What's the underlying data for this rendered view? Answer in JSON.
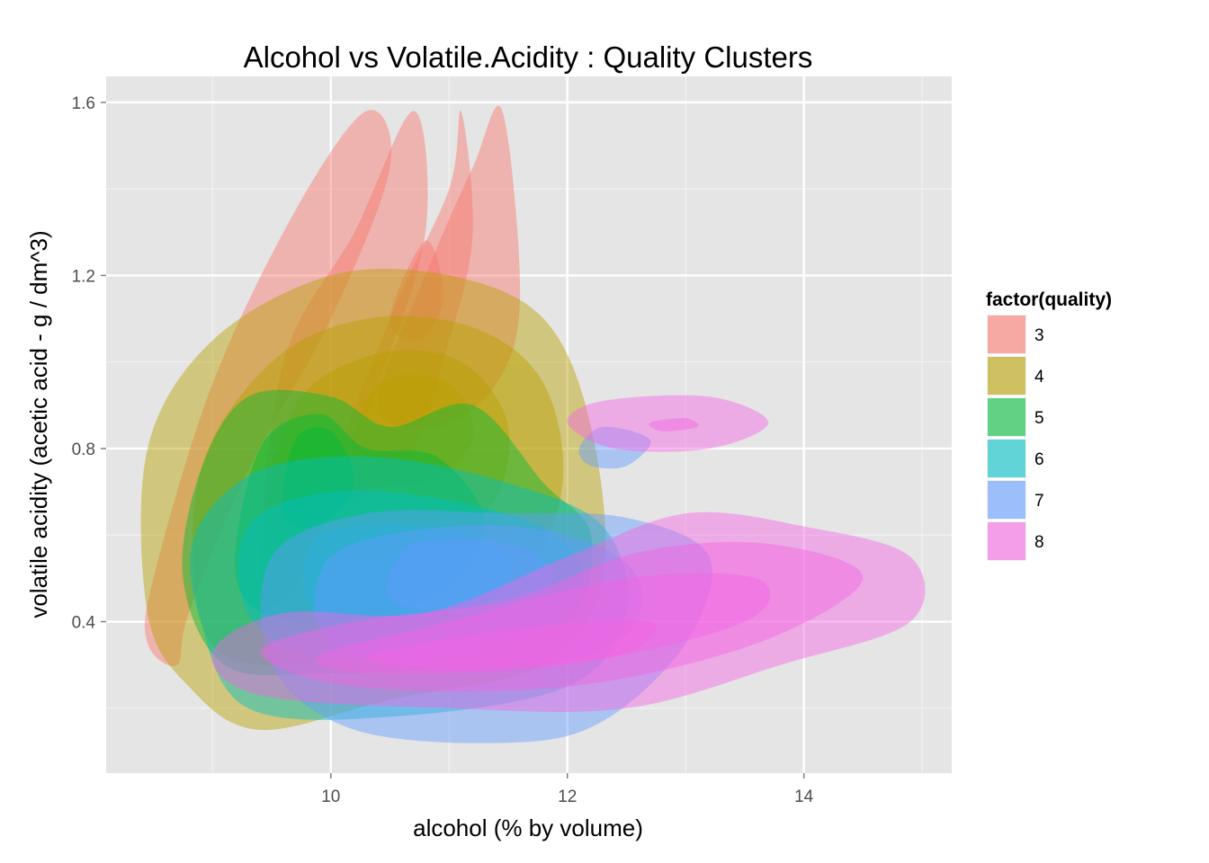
{
  "chart_data": {
    "type": "density2d",
    "title": "Alcohol vs Volatile.Acidity : Quality Clusters",
    "xlabel": "alcohol (% by volume)",
    "ylabel": "volatile acidity (acetic acid - g / dm^3)",
    "xlim": [
      8.1,
      15.25
    ],
    "ylim": [
      0.05,
      1.66
    ],
    "x_ticks": [
      10,
      12,
      14
    ],
    "y_ticks": [
      0.4,
      0.8,
      1.2,
      1.6
    ],
    "x_tick_labels": [
      "10",
      "12",
      "14"
    ],
    "y_tick_labels": [
      "0.4",
      "0.8",
      "1.2",
      "1.6"
    ],
    "grid": true,
    "panel_color": "#e5e5e5",
    "legend": {
      "title": "factor(quality)",
      "position": "right",
      "labels": [
        "3",
        "4",
        "5",
        "6",
        "7",
        "8"
      ],
      "colors": [
        "#F8766D",
        "#B79F00",
        "#00BA38",
        "#00BFC4",
        "#619CFF",
        "#F564E3"
      ]
    },
    "series": [
      {
        "name": "3",
        "color": "#F8766D",
        "layers": [
          [
            [
              8.45,
              0.35
            ],
            [
              8.5,
              0.5
            ],
            [
              9.0,
              0.95
            ],
            [
              9.7,
              1.35
            ],
            [
              10.3,
              1.58
            ],
            [
              10.5,
              1.45
            ],
            [
              10.0,
              1.1
            ],
            [
              9.3,
              0.75
            ],
            [
              8.8,
              0.42
            ],
            [
              8.7,
              0.3
            ]
          ],
          [
            [
              9.4,
              0.5
            ],
            [
              9.6,
              1.0
            ],
            [
              10.2,
              1.3
            ],
            [
              10.7,
              1.58
            ],
            [
              10.8,
              1.3
            ],
            [
              10.4,
              0.95
            ],
            [
              9.9,
              0.6
            ],
            [
              9.6,
              0.45
            ]
          ],
          [
            [
              10.0,
              0.7
            ],
            [
              10.5,
              1.1
            ],
            [
              11.0,
              1.4
            ],
            [
              11.1,
              1.58
            ],
            [
              11.2,
              1.3
            ],
            [
              11.0,
              1.05
            ],
            [
              10.6,
              0.75
            ]
          ],
          [
            [
              10.4,
              0.9
            ],
            [
              10.8,
              1.2
            ],
            [
              11.2,
              1.45
            ],
            [
              11.45,
              1.58
            ],
            [
              11.6,
              1.15
            ],
            [
              11.4,
              0.95
            ],
            [
              10.9,
              0.85
            ]
          ],
          [
            [
              10.5,
              1.1
            ],
            [
              10.8,
              1.28
            ],
            [
              10.95,
              1.15
            ],
            [
              10.75,
              1.05
            ]
          ]
        ]
      },
      {
        "name": "4",
        "color": "#B79F00",
        "layers": [
          [
            [
              8.45,
              0.42
            ],
            [
              8.45,
              0.8
            ],
            [
              9.0,
              1.05
            ],
            [
              10.0,
              1.2
            ],
            [
              11.0,
              1.2
            ],
            [
              11.8,
              1.1
            ],
            [
              12.2,
              0.85
            ],
            [
              12.3,
              0.5
            ],
            [
              11.8,
              0.3
            ],
            [
              10.5,
              0.22
            ],
            [
              9.4,
              0.15
            ],
            [
              8.8,
              0.25
            ]
          ],
          [
            [
              8.9,
              0.4
            ],
            [
              8.9,
              0.75
            ],
            [
              9.5,
              1.0
            ],
            [
              10.3,
              1.1
            ],
            [
              11.2,
              1.08
            ],
            [
              11.8,
              0.95
            ],
            [
              11.95,
              0.7
            ],
            [
              11.5,
              0.45
            ],
            [
              10.5,
              0.35
            ],
            [
              9.4,
              0.3
            ]
          ],
          [
            [
              9.5,
              0.6
            ],
            [
              9.7,
              0.9
            ],
            [
              10.4,
              1.02
            ],
            [
              11.1,
              1.0
            ],
            [
              11.5,
              0.85
            ],
            [
              11.3,
              0.65
            ],
            [
              10.4,
              0.55
            ]
          ],
          [
            [
              10.2,
              0.75
            ],
            [
              10.4,
              0.95
            ],
            [
              11.0,
              0.95
            ],
            [
              11.2,
              0.82
            ],
            [
              10.8,
              0.72
            ]
          ]
        ]
      },
      {
        "name": "5",
        "color": "#00BA38",
        "layers": [
          [
            [
              8.75,
              0.5
            ],
            [
              8.9,
              0.75
            ],
            [
              9.3,
              0.92
            ],
            [
              10.0,
              0.92
            ],
            [
              10.5,
              0.85
            ],
            [
              11.2,
              0.9
            ],
            [
              11.8,
              0.72
            ],
            [
              12.2,
              0.6
            ],
            [
              12.0,
              0.4
            ],
            [
              11.0,
              0.3
            ],
            [
              9.9,
              0.28
            ],
            [
              9.1,
              0.3
            ]
          ],
          [
            [
              9.2,
              0.5
            ],
            [
              9.4,
              0.8
            ],
            [
              9.9,
              0.88
            ],
            [
              10.3,
              0.8
            ],
            [
              10.9,
              0.78
            ],
            [
              11.3,
              0.62
            ],
            [
              10.8,
              0.45
            ],
            [
              9.7,
              0.4
            ]
          ],
          [
            [
              9.6,
              0.65
            ],
            [
              9.7,
              0.82
            ],
            [
              10.0,
              0.84
            ],
            [
              10.2,
              0.72
            ],
            [
              9.9,
              0.62
            ]
          ]
        ]
      },
      {
        "name": "6",
        "color": "#00BFC4",
        "layers": [
          [
            [
              8.9,
              0.4
            ],
            [
              8.85,
              0.6
            ],
            [
              9.4,
              0.75
            ],
            [
              10.4,
              0.78
            ],
            [
              11.5,
              0.72
            ],
            [
              12.3,
              0.62
            ],
            [
              12.5,
              0.42
            ],
            [
              12.0,
              0.25
            ],
            [
              10.5,
              0.18
            ],
            [
              9.3,
              0.2
            ]
          ],
          [
            [
              9.3,
              0.42
            ],
            [
              9.3,
              0.62
            ],
            [
              10.0,
              0.7
            ],
            [
              11.0,
              0.68
            ],
            [
              11.9,
              0.6
            ],
            [
              12.1,
              0.45
            ],
            [
              11.2,
              0.32
            ],
            [
              9.9,
              0.32
            ]
          ],
          [
            [
              9.8,
              0.45
            ],
            [
              9.9,
              0.6
            ],
            [
              10.8,
              0.62
            ],
            [
              11.5,
              0.55
            ],
            [
              11.2,
              0.42
            ],
            [
              10.2,
              0.4
            ]
          ]
        ]
      },
      {
        "name": "7",
        "color": "#619CFF",
        "layers": [
          [
            [
              9.5,
              0.3
            ],
            [
              9.5,
              0.55
            ],
            [
              10.3,
              0.65
            ],
            [
              11.5,
              0.65
            ],
            [
              12.5,
              0.64
            ],
            [
              13.2,
              0.55
            ],
            [
              13.0,
              0.35
            ],
            [
              12.3,
              0.17
            ],
            [
              11.5,
              0.12
            ],
            [
              10.2,
              0.15
            ]
          ],
          [
            [
              10.0,
              0.35
            ],
            [
              10.0,
              0.55
            ],
            [
              11.0,
              0.62
            ],
            [
              12.0,
              0.6
            ],
            [
              12.6,
              0.5
            ],
            [
              12.4,
              0.35
            ],
            [
              11.2,
              0.28
            ]
          ],
          [
            [
              10.5,
              0.45
            ],
            [
              10.7,
              0.58
            ],
            [
              11.5,
              0.58
            ],
            [
              11.9,
              0.5
            ],
            [
              11.3,
              0.42
            ]
          ],
          [
            [
              12.1,
              0.8
            ],
            [
              12.3,
              0.85
            ],
            [
              12.7,
              0.82
            ],
            [
              12.5,
              0.76
            ],
            [
              12.2,
              0.76
            ]
          ]
        ]
      },
      {
        "name": "8",
        "color": "#F564E3",
        "layers": [
          [
            [
              9.0,
              0.33
            ],
            [
              9.6,
              0.42
            ],
            [
              10.8,
              0.42
            ],
            [
              12.0,
              0.55
            ],
            [
              13.0,
              0.65
            ],
            [
              14.0,
              0.62
            ],
            [
              14.9,
              0.55
            ],
            [
              14.9,
              0.4
            ],
            [
              13.8,
              0.3
            ],
            [
              12.5,
              0.2
            ],
            [
              11.0,
              0.2
            ],
            [
              9.4,
              0.23
            ]
          ],
          [
            [
              9.4,
              0.33
            ],
            [
              10.2,
              0.4
            ],
            [
              11.5,
              0.45
            ],
            [
              12.6,
              0.56
            ],
            [
              13.7,
              0.58
            ],
            [
              14.5,
              0.5
            ],
            [
              13.6,
              0.35
            ],
            [
              12.0,
              0.25
            ],
            [
              10.2,
              0.25
            ]
          ],
          [
            [
              9.9,
              0.32
            ],
            [
              11.0,
              0.4
            ],
            [
              12.5,
              0.5
            ],
            [
              13.6,
              0.5
            ],
            [
              13.5,
              0.4
            ],
            [
              12.0,
              0.3
            ],
            [
              10.4,
              0.28
            ]
          ],
          [
            [
              10.3,
              0.32
            ],
            [
              11.5,
              0.38
            ],
            [
              12.7,
              0.4
            ],
            [
              12.4,
              0.32
            ],
            [
              11.0,
              0.29
            ]
          ],
          [
            [
              12.0,
              0.86
            ],
            [
              12.3,
              0.91
            ],
            [
              13.2,
              0.92
            ],
            [
              13.7,
              0.86
            ],
            [
              13.2,
              0.8
            ],
            [
              12.4,
              0.8
            ]
          ],
          [
            [
              12.7,
              0.86
            ],
            [
              13.0,
              0.87
            ],
            [
              13.1,
              0.85
            ],
            [
              12.8,
              0.84
            ]
          ]
        ]
      }
    ]
  }
}
